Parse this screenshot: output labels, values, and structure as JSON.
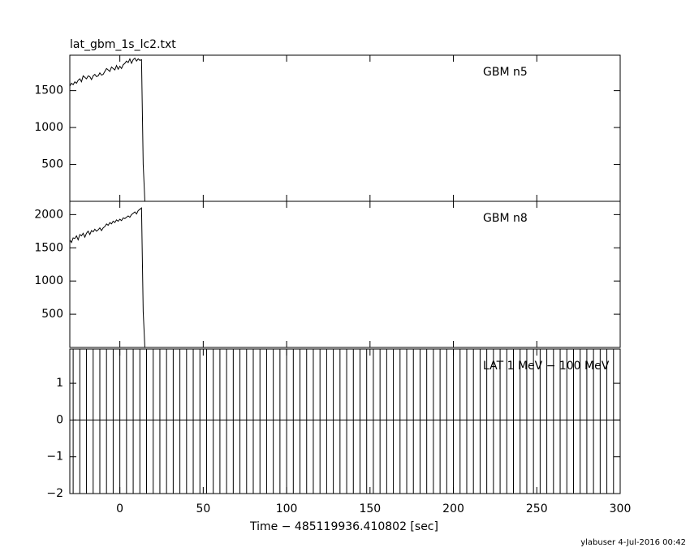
{
  "chart_data": [
    {
      "type": "line",
      "title": "lat_gbm_1s_lc2.txt",
      "annotation": "GBM n5",
      "x": [
        -30,
        -29,
        -28,
        -27,
        -26,
        -25,
        -24,
        -23,
        -22,
        -21,
        -20,
        -19,
        -18,
        -17,
        -16,
        -15,
        -14,
        -13,
        -12,
        -11,
        -10,
        -9,
        -8,
        -7,
        -6,
        -5,
        -4,
        -3,
        -2,
        -1,
        0,
        1,
        2,
        3,
        4,
        5,
        6,
        7,
        8,
        9,
        10,
        11,
        12,
        13,
        14,
        15
      ],
      "values": [
        1560,
        1600,
        1580,
        1620,
        1600,
        1640,
        1660,
        1620,
        1700,
        1680,
        1660,
        1700,
        1690,
        1650,
        1700,
        1720,
        1690,
        1700,
        1740,
        1710,
        1720,
        1760,
        1800,
        1780,
        1760,
        1820,
        1800,
        1780,
        1840,
        1790,
        1830,
        1800,
        1850,
        1870,
        1900,
        1880,
        1930,
        1870,
        1920,
        1940,
        1900,
        1930,
        1910,
        1920,
        500,
        0
      ],
      "color": "#000000",
      "xlim": [
        -30,
        300
      ],
      "xticks": [
        0,
        50,
        100,
        150,
        200,
        250,
        300
      ],
      "ylim": [
        0,
        1980
      ],
      "yticks": [
        500,
        1000,
        1500
      ]
    },
    {
      "type": "line",
      "annotation": "GBM n8",
      "x": [
        -30,
        -29,
        -28,
        -27,
        -26,
        -25,
        -24,
        -23,
        -22,
        -21,
        -20,
        -19,
        -18,
        -17,
        -16,
        -15,
        -14,
        -13,
        -12,
        -11,
        -10,
        -9,
        -8,
        -7,
        -6,
        -5,
        -4,
        -3,
        -2,
        -1,
        0,
        1,
        2,
        3,
        4,
        5,
        6,
        7,
        8,
        9,
        10,
        11,
        12,
        13,
        14,
        15
      ],
      "values": [
        1620,
        1580,
        1650,
        1640,
        1680,
        1620,
        1700,
        1680,
        1720,
        1660,
        1720,
        1750,
        1700,
        1760,
        1740,
        1780,
        1750,
        1770,
        1800,
        1760,
        1800,
        1820,
        1860,
        1840,
        1880,
        1860,
        1900,
        1880,
        1920,
        1900,
        1930,
        1910,
        1950,
        1940,
        1960,
        1980,
        1960,
        2000,
        2020,
        2040,
        2010,
        2060,
        2080,
        2100,
        540,
        0
      ],
      "color": "#000000",
      "xlim": [
        -30,
        300
      ],
      "xticks": [
        0,
        50,
        100,
        150,
        200,
        250,
        300
      ],
      "ylim": [
        0,
        2200
      ],
      "yticks": [
        500,
        1000,
        1500,
        2000
      ]
    },
    {
      "type": "errorbar",
      "annotation": "LAT 1 MeV − 100 MeV",
      "xlabel": "Time − 485119936.410802 [sec]",
      "x": [
        -28,
        -24,
        -20,
        -16,
        -12,
        -8,
        -4,
        0,
        4,
        8,
        12,
        16,
        20,
        24,
        28,
        32,
        36,
        40,
        44,
        48,
        52,
        56,
        60,
        64,
        68,
        72,
        76,
        80,
        84,
        88,
        92,
        96,
        100,
        104,
        108,
        112,
        116,
        120,
        124,
        128,
        132,
        136,
        140,
        144,
        148,
        152,
        156,
        160,
        164,
        168,
        172,
        176,
        180,
        184,
        188,
        192,
        196,
        200,
        204,
        208,
        212,
        216,
        220,
        224,
        228,
        232,
        236,
        240,
        244,
        248,
        252,
        256,
        260,
        264,
        268,
        272,
        276,
        280,
        284,
        288,
        292,
        296,
        300
      ],
      "values": [
        0,
        0,
        0,
        0,
        0,
        0,
        0,
        0,
        0,
        0,
        0,
        0,
        0,
        0,
        0,
        0,
        0,
        0,
        0,
        0,
        0,
        0,
        0,
        0,
        0,
        0,
        0,
        0,
        0,
        0,
        0,
        0,
        0,
        0,
        0,
        0,
        0,
        0,
        0,
        0,
        0,
        0,
        0,
        0,
        0,
        0,
        0,
        0,
        0,
        0,
        0,
        0,
        0,
        0,
        0,
        0,
        0,
        0,
        0,
        0,
        0,
        0,
        0,
        0,
        0,
        0,
        0,
        0,
        0,
        0,
        0,
        0,
        0,
        0,
        0,
        0,
        0,
        0,
        0,
        0,
        0,
        0,
        0
      ],
      "errors": [
        4,
        4,
        4,
        4,
        4,
        4,
        4,
        4,
        4,
        4,
        4,
        4,
        4,
        4,
        4,
        4,
        4,
        4,
        4,
        4,
        4,
        4,
        4,
        4,
        4,
        4,
        4,
        4,
        4,
        4,
        4,
        4,
        4,
        4,
        4,
        4,
        4,
        4,
        4,
        4,
        4,
        4,
        4,
        4,
        4,
        4,
        4,
        4,
        4,
        4,
        4,
        4,
        4,
        4,
        4,
        4,
        4,
        4,
        4,
        4,
        4,
        4,
        4,
        4,
        4,
        4,
        4,
        4,
        4,
        4,
        4,
        4,
        4,
        4,
        4,
        4,
        4,
        4,
        4,
        4,
        4,
        4,
        4
      ],
      "color": "#000000",
      "xlim": [
        -30,
        300
      ],
      "xticks": [
        0,
        50,
        100,
        150,
        200,
        250,
        300
      ],
      "ylim": [
        -2,
        1.93
      ],
      "yticks": [
        {
          "value": -2,
          "label": "−2"
        },
        {
          "value": -1,
          "label": "−1"
        },
        0,
        1
      ]
    }
  ],
  "footer": "ylabuser  4-Jul-2016 00:42"
}
